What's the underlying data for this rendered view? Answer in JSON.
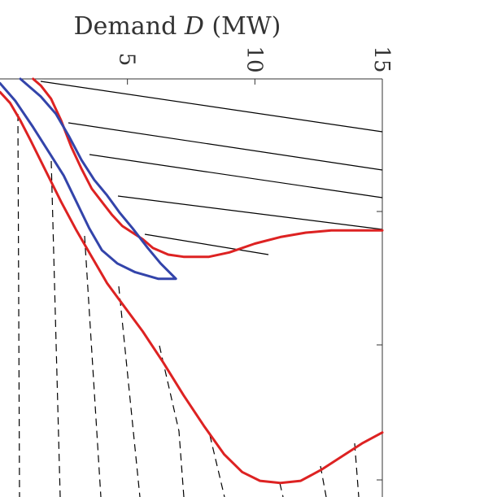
{
  "chart_data": {
    "type": "line",
    "title_prefix": "Demand ",
    "title_variable": "D",
    "title_suffix": " (MW)",
    "xlim": [
      0,
      15
    ],
    "x_ticks": [
      {
        "value": 5,
        "label": "5"
      },
      {
        "value": 10,
        "label": "10"
      },
      {
        "value": 15,
        "label": "15"
      }
    ],
    "colors": {
      "outer_curve": "#dd2222",
      "inner_curve": "#3344aa",
      "guide_lines": "#000000"
    },
    "series": [
      {
        "key": "red_upper",
        "color": "#dd2222",
        "style": "solid",
        "points": [
          [
            1.3,
            0
          ],
          [
            1.6,
            0.3
          ],
          [
            2.0,
            0.9
          ],
          [
            2.4,
            1.9
          ],
          [
            2.8,
            3.1
          ],
          [
            3.2,
            4.1
          ],
          [
            3.6,
            5.0
          ],
          [
            4.0,
            5.6
          ],
          [
            4.4,
            6.2
          ],
          [
            4.8,
            6.7
          ],
          [
            5.2,
            7.0
          ],
          [
            5.6,
            7.3
          ],
          [
            6.0,
            7.7
          ],
          [
            6.6,
            8.0
          ],
          [
            7.2,
            8.1
          ],
          [
            8.2,
            8.1
          ],
          [
            9.0,
            7.9
          ],
          [
            10.0,
            7.5
          ],
          [
            11.0,
            7.2
          ],
          [
            12.0,
            7.0
          ],
          [
            13.0,
            6.9
          ],
          [
            14.0,
            6.9
          ],
          [
            15.0,
            6.9
          ]
        ]
      },
      {
        "key": "red_lower",
        "color": "#dd2222",
        "style": "solid",
        "points": [
          [
            0,
            0.6
          ],
          [
            0.4,
            1.1
          ],
          [
            0.8,
            1.9
          ],
          [
            1.2,
            2.8
          ],
          [
            1.8,
            4.2
          ],
          [
            2.4,
            5.6
          ],
          [
            3.0,
            6.9
          ],
          [
            3.6,
            8.1
          ],
          [
            4.2,
            9.3
          ],
          [
            4.9,
            10.4
          ],
          [
            5.6,
            11.5
          ],
          [
            6.4,
            12.9
          ],
          [
            7.2,
            14.4
          ],
          [
            8.0,
            15.8
          ],
          [
            8.8,
            17.1
          ],
          [
            9.5,
            17.9
          ],
          [
            10.2,
            18.3
          ],
          [
            11.0,
            18.4
          ],
          [
            11.8,
            18.3
          ],
          [
            12.6,
            17.8
          ],
          [
            13.4,
            17.2
          ],
          [
            14.2,
            16.6
          ],
          [
            15.0,
            16.1
          ]
        ]
      },
      {
        "key": "blue_loop",
        "color": "#3344aa",
        "style": "solid",
        "points": [
          [
            0.8,
            0
          ],
          [
            1.6,
            0.8
          ],
          [
            2.2,
            1.6
          ],
          [
            2.7,
            2.6
          ],
          [
            3.2,
            3.7
          ],
          [
            3.7,
            4.6
          ],
          [
            4.2,
            5.3
          ],
          [
            4.7,
            6.1
          ],
          [
            5.2,
            6.8
          ],
          [
            5.8,
            7.7
          ],
          [
            6.3,
            8.4
          ],
          [
            6.9,
            9.1
          ],
          [
            6.2,
            9.1
          ],
          [
            5.3,
            8.8
          ],
          [
            4.6,
            8.4
          ],
          [
            4.0,
            7.8
          ],
          [
            3.5,
            6.8
          ],
          [
            3.0,
            5.6
          ],
          [
            2.5,
            4.4
          ],
          [
            1.9,
            3.3
          ],
          [
            1.3,
            2.2
          ],
          [
            0.6,
            1.0
          ],
          [
            0,
            0.2
          ]
        ]
      }
    ]
  }
}
